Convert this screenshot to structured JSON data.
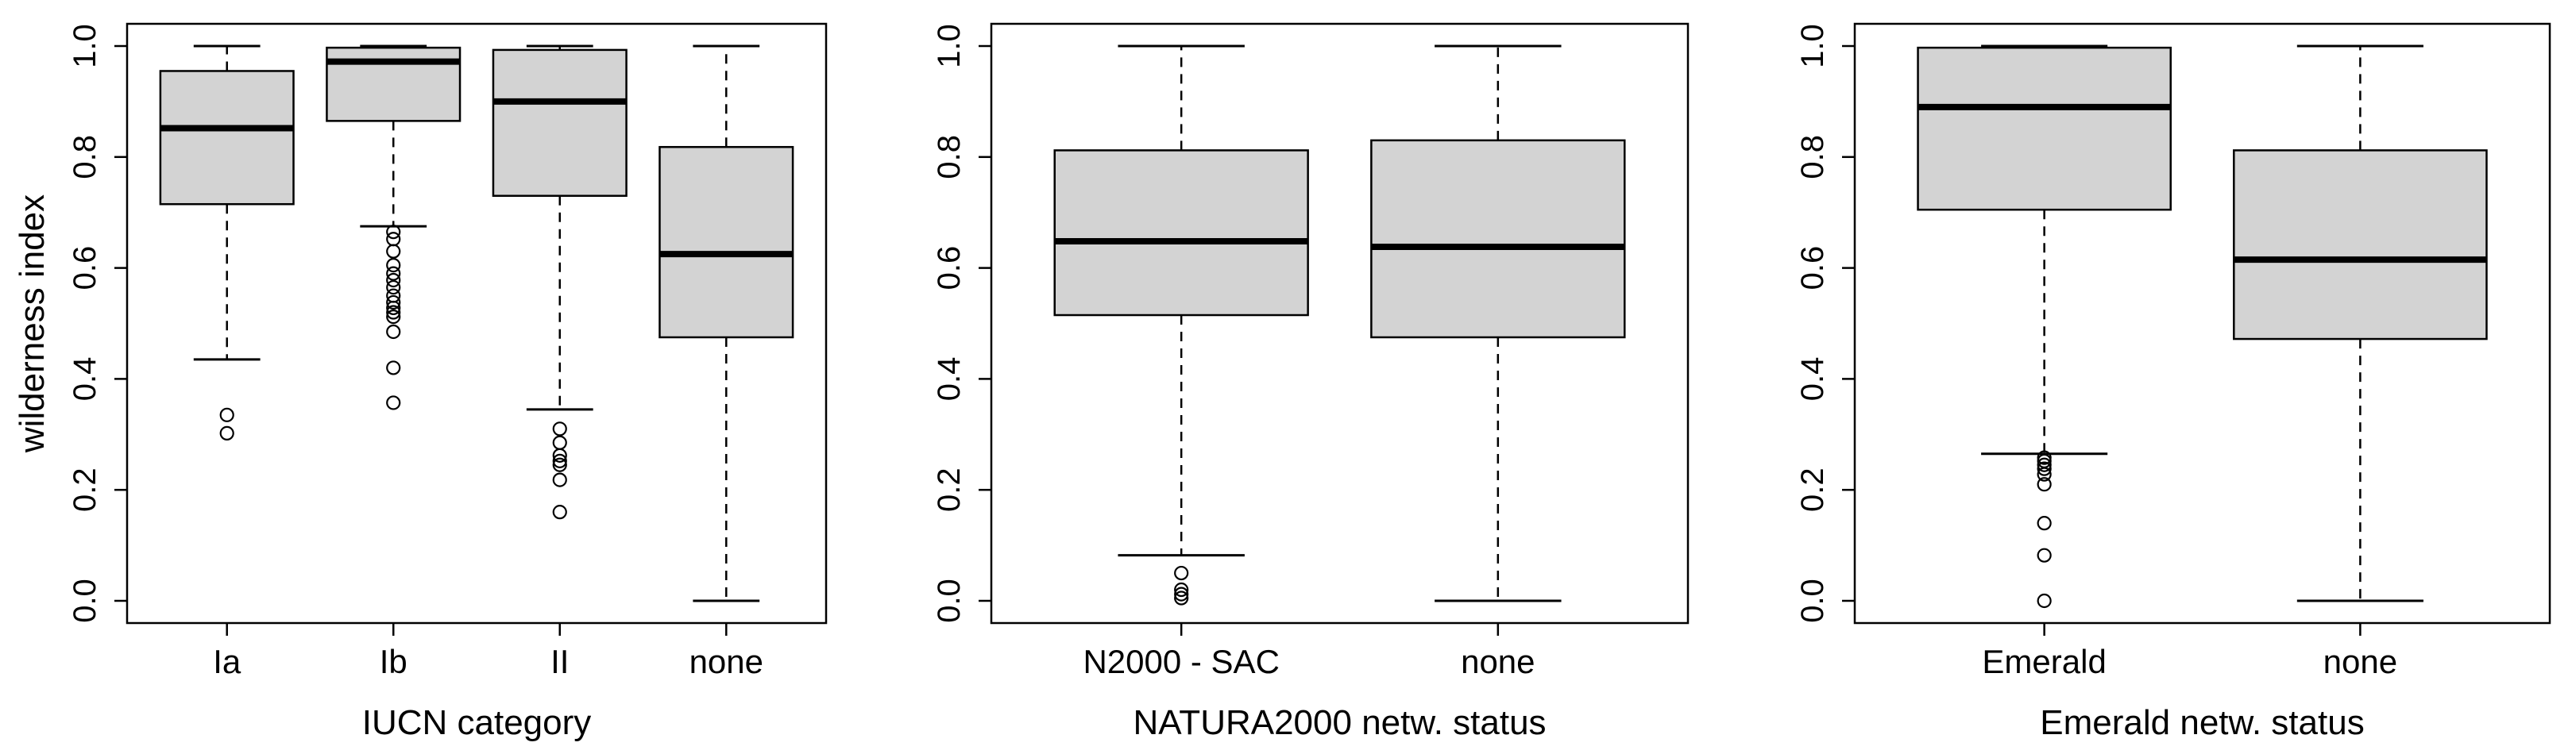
{
  "chart_data": [
    {
      "type": "box",
      "title": "",
      "xlabel": "IUCN category",
      "ylabel": "wilderness index",
      "ylim": [
        0,
        1
      ],
      "yticks": [
        "0.0",
        "0.2",
        "0.4",
        "0.6",
        "0.8",
        "1.0"
      ],
      "grid": false,
      "categories": [
        "Ia",
        "Ib",
        "II",
        "none"
      ],
      "boxes": [
        {
          "min": 0.435,
          "q1": 0.715,
          "median": 0.852,
          "q3": 0.955,
          "max": 1.0,
          "outliers": [
            0.335,
            0.302
          ]
        },
        {
          "min": 0.675,
          "q1": 0.865,
          "median": 0.972,
          "q3": 0.997,
          "max": 1.0,
          "outliers": [
            0.665,
            0.652,
            0.63,
            0.605,
            0.59,
            0.578,
            0.565,
            0.55,
            0.538,
            0.528,
            0.52,
            0.512,
            0.485,
            0.42,
            0.357
          ]
        },
        {
          "min": 0.345,
          "q1": 0.73,
          "median": 0.9,
          "q3": 0.993,
          "max": 1.0,
          "outliers": [
            0.31,
            0.285,
            0.262,
            0.252,
            0.245,
            0.218,
            0.16
          ]
        },
        {
          "min": 0.0,
          "q1": 0.475,
          "median": 0.625,
          "q3": 0.818,
          "max": 1.0,
          "outliers": []
        }
      ]
    },
    {
      "type": "box",
      "title": "",
      "xlabel": "NATURA2000 netw. status",
      "ylabel": "",
      "ylim": [
        0,
        1
      ],
      "yticks": [
        "0.0",
        "0.2",
        "0.4",
        "0.6",
        "0.8",
        "1.0"
      ],
      "grid": false,
      "categories": [
        "N2000 - SAC",
        "none"
      ],
      "boxes": [
        {
          "min": 0.082,
          "q1": 0.515,
          "median": 0.648,
          "q3": 0.812,
          "max": 1.0,
          "outliers": [
            0.05,
            0.02,
            0.012,
            0.005
          ]
        },
        {
          "min": 0.0,
          "q1": 0.475,
          "median": 0.638,
          "q3": 0.83,
          "max": 1.0,
          "outliers": []
        }
      ]
    },
    {
      "type": "box",
      "title": "",
      "xlabel": "Emerald netw. status",
      "ylabel": "",
      "ylim": [
        0,
        1
      ],
      "yticks": [
        "0.0",
        "0.2",
        "0.4",
        "0.6",
        "0.8",
        "1.0"
      ],
      "grid": false,
      "categories": [
        "Emerald",
        "none"
      ],
      "boxes": [
        {
          "min": 0.265,
          "q1": 0.705,
          "median": 0.89,
          "q3": 0.997,
          "max": 1.0,
          "outliers": [
            0.258,
            0.252,
            0.245,
            0.238,
            0.228,
            0.21,
            0.14,
            0.082,
            0.0
          ]
        },
        {
          "min": 0.0,
          "q1": 0.472,
          "median": 0.615,
          "q3": 0.812,
          "max": 1.0,
          "outliers": []
        }
      ]
    }
  ]
}
